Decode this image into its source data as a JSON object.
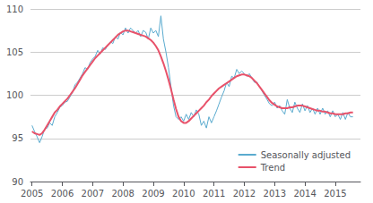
{
  "chart_data": {
    "type": "line",
    "x": [
      2005,
      2005.0833333333333,
      2005.1666666666667,
      2005.25,
      2005.3333333333333,
      2005.4166666666667,
      2005.5,
      2005.5833333333333,
      2005.6666666666667,
      2005.75,
      2005.8333333333333,
      2005.9166666666667,
      2006,
      2006.0833333333333,
      2006.1666666666667,
      2006.25,
      2006.3333333333333,
      2006.4166666666667,
      2006.5,
      2006.5833333333333,
      2006.6666666666667,
      2006.75,
      2006.8333333333333,
      2006.9166666666667,
      2007,
      2007.0833333333333,
      2007.1666666666667,
      2007.25,
      2007.3333333333333,
      2007.4166666666667,
      2007.5,
      2007.5833333333333,
      2007.6666666666667,
      2007.75,
      2007.8333333333333,
      2007.9166666666667,
      2008,
      2008.0833333333333,
      2008.1666666666667,
      2008.25,
      2008.3333333333333,
      2008.4166666666667,
      2008.5,
      2008.5833333333333,
      2008.6666666666667,
      2008.75,
      2008.8333333333333,
      2008.9166666666667,
      2009,
      2009.0833333333333,
      2009.1666666666667,
      2009.25,
      2009.3333333333333,
      2009.4166666666667,
      2009.5,
      2009.5833333333333,
      2009.6666666666667,
      2009.75,
      2009.8333333333333,
      2009.9166666666667,
      2010,
      2010.0833333333333,
      2010.1666666666667,
      2010.25,
      2010.3333333333333,
      2010.4166666666667,
      2010.5,
      2010.5833333333333,
      2010.6666666666667,
      2010.75,
      2010.8333333333333,
      2010.9166666666667,
      2011,
      2011.0833333333333,
      2011.1666666666667,
      2011.25,
      2011.3333333333333,
      2011.4166666666667,
      2011.5,
      2011.5833333333333,
      2011.6666666666667,
      2011.75,
      2011.8333333333333,
      2011.9166666666667,
      2012,
      2012.0833333333333,
      2012.1666666666667,
      2012.25,
      2012.3333333333333,
      2012.4166666666667,
      2012.5,
      2012.5833333333333,
      2012.6666666666667,
      2012.75,
      2012.8333333333333,
      2012.9166666666667,
      2013,
      2013.0833333333333,
      2013.1666666666667,
      2013.25,
      2013.3333333333333,
      2013.4166666666667,
      2013.5,
      2013.5833333333333,
      2013.6666666666667,
      2013.75,
      2013.8333333333333,
      2013.9166666666667,
      2014,
      2014.0833333333333,
      2014.1666666666667,
      2014.25,
      2014.3333333333333,
      2014.4166666666667,
      2014.5,
      2014.5833333333333,
      2014.6666666666667,
      2014.75,
      2014.8333333333333,
      2014.9166666666667,
      2015,
      2015.0833333333333,
      2015.1666666666667,
      2015.25,
      2015.3333333333333,
      2015.4166666666667,
      2015.5,
      2015.5833333333333
    ],
    "series": [
      {
        "name": "Seasonally adjusted",
        "color": "#5aabcf",
        "values": [
          96.5,
          95.8,
          95.2,
          94.5,
          95.2,
          96.1,
          96.2,
          96.8,
          96.5,
          97.5,
          98.0,
          98.6,
          98.8,
          99.2,
          99.3,
          99.8,
          100.3,
          101.2,
          101.5,
          102.0,
          102.5,
          103.2,
          103.0,
          103.8,
          104.2,
          104.5,
          105.2,
          104.8,
          105.5,
          105.3,
          105.8,
          106.2,
          106.0,
          106.8,
          106.5,
          107.3,
          107.0,
          107.8,
          107.2,
          107.8,
          107.5,
          107.2,
          107.5,
          106.8,
          107.5,
          107.3,
          106.5,
          107.8,
          107.2,
          107.5,
          106.8,
          109.2,
          106.5,
          105.0,
          103.2,
          101.0,
          98.8,
          97.5,
          97.2,
          97.5,
          97.0,
          97.8,
          97.2,
          98.0,
          97.5,
          98.3,
          97.8,
          96.5,
          97.0,
          96.2,
          97.5,
          96.8,
          97.5,
          98.2,
          99.0,
          99.8,
          100.5,
          101.5,
          101.0,
          102.2,
          102.0,
          103.0,
          102.5,
          102.8,
          102.5,
          102.2,
          102.5,
          102.0,
          101.5,
          101.5,
          101.0,
          100.5,
          100.0,
          99.5,
          99.0,
          98.8,
          99.2,
          98.5,
          98.8,
          98.2,
          97.8,
          99.5,
          98.5,
          98.0,
          99.2,
          98.5,
          98.0,
          99.0,
          98.2,
          98.8,
          98.0,
          98.5,
          97.8,
          98.5,
          97.8,
          98.5,
          97.8,
          98.2,
          97.5,
          98.2,
          97.5,
          97.8,
          97.2,
          98.0,
          97.2,
          98.0,
          97.5,
          97.5
        ]
      },
      {
        "name": "Trend",
        "color": "#e8526a",
        "values": [
          95.8,
          95.6,
          95.5,
          95.4,
          95.6,
          96.0,
          96.5,
          97.0,
          97.5,
          98.0,
          98.3,
          98.7,
          99.0,
          99.3,
          99.6,
          100.0,
          100.4,
          100.8,
          101.3,
          101.8,
          102.3,
          102.7,
          103.1,
          103.5,
          103.9,
          104.3,
          104.6,
          104.9,
          105.2,
          105.5,
          105.8,
          106.1,
          106.4,
          106.7,
          107.0,
          107.2,
          107.4,
          107.5,
          107.5,
          107.4,
          107.3,
          107.2,
          107.1,
          107.0,
          106.9,
          106.8,
          106.6,
          106.4,
          106.1,
          105.7,
          105.2,
          104.5,
          103.7,
          102.8,
          101.8,
          100.7,
          99.5,
          98.4,
          97.5,
          97.0,
          96.8,
          96.8,
          97.0,
          97.3,
          97.6,
          97.9,
          98.2,
          98.5,
          98.8,
          99.2,
          99.5,
          99.9,
          100.2,
          100.5,
          100.8,
          101.0,
          101.2,
          101.4,
          101.6,
          101.8,
          102.0,
          102.2,
          102.3,
          102.4,
          102.4,
          102.3,
          102.2,
          102.0,
          101.7,
          101.4,
          101.0,
          100.6,
          100.2,
          99.8,
          99.4,
          99.1,
          98.9,
          98.7,
          98.6,
          98.5,
          98.5,
          98.5,
          98.6,
          98.6,
          98.7,
          98.8,
          98.8,
          98.8,
          98.7,
          98.6,
          98.5,
          98.4,
          98.3,
          98.2,
          98.2,
          98.1,
          98.1,
          98.0,
          97.9,
          97.9,
          97.8,
          97.8,
          97.8,
          97.8,
          97.9,
          97.9,
          98.0,
          98.0
        ]
      }
    ],
    "xlim": [
      2004.95,
      2015.83
    ],
    "xticks": [
      2005,
      2006,
      2007,
      2008,
      2009,
      2010,
      2011,
      2012,
      2013,
      2014,
      2015
    ],
    "ylim": [
      90,
      110
    ],
    "yticks": [
      90,
      95,
      100,
      105,
      110
    ],
    "grid": true,
    "legend": "lower right"
  }
}
